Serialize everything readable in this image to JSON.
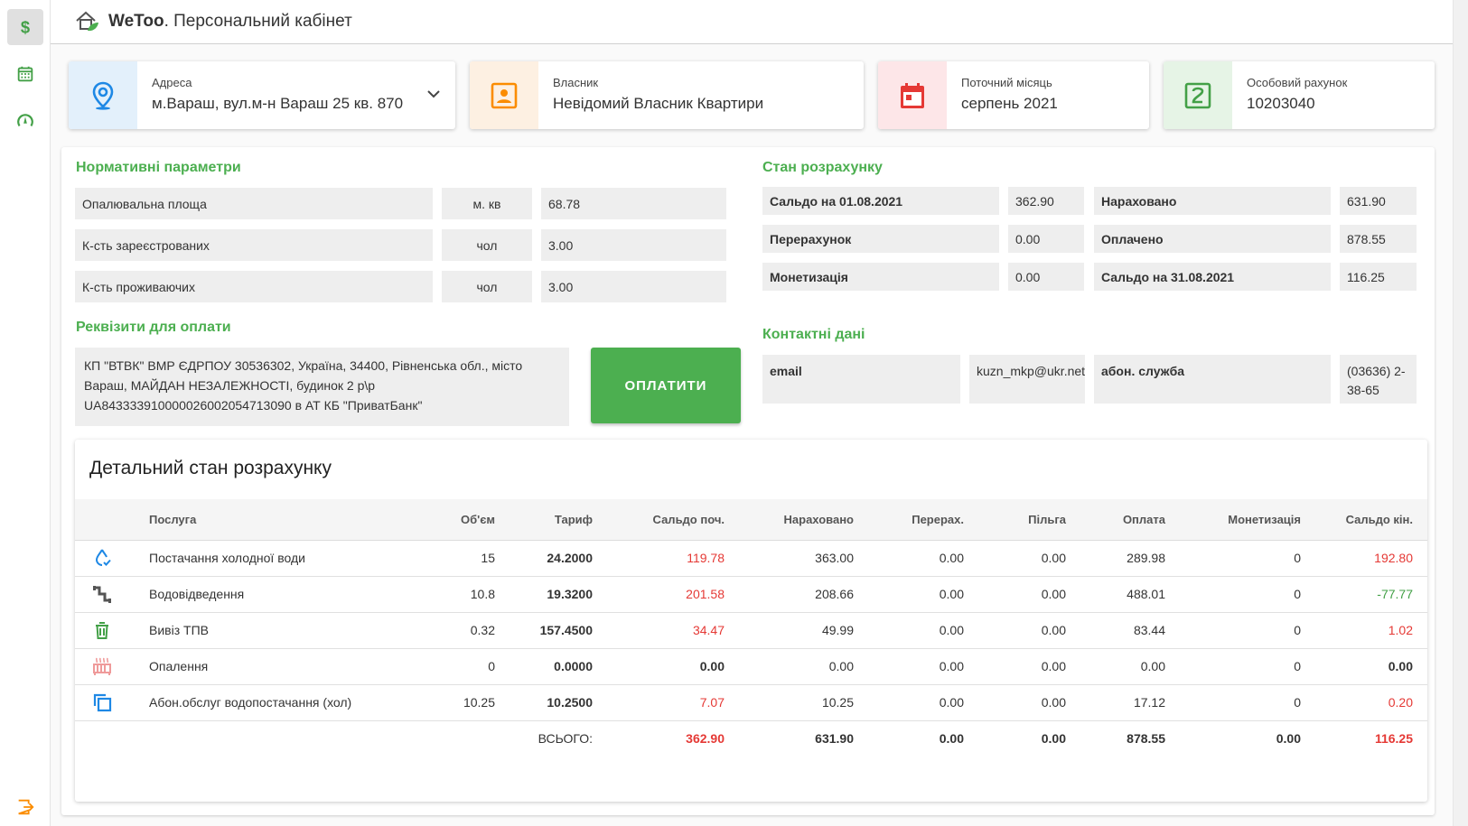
{
  "header": {
    "brand": "WeToo",
    "rest": ". Персональний кабінет"
  },
  "cards": {
    "address": {
      "label": "Адреса",
      "value": "м.Вараш, вул.м-н Вараш 25 кв. 870"
    },
    "owner": {
      "label": "Власник",
      "value": "Невідомий Власник Квартири"
    },
    "month": {
      "label": "Поточний місяць",
      "value": "серпень 2021"
    },
    "account": {
      "label": "Особовий рахунок",
      "value": "10203040"
    }
  },
  "norm": {
    "title": "Нормативні параметри",
    "rows": [
      {
        "label": "Опалювальна площа",
        "unit": "м. кв",
        "value": "68.78"
      },
      {
        "label": "К-сть зареєстрованих",
        "unit": "чол",
        "value": "3.00"
      },
      {
        "label": "К-сть проживаючих",
        "unit": "чол",
        "value": "3.00"
      }
    ]
  },
  "payment": {
    "title": "Реквізити для оплати",
    "line1": "КП \"ВТВК\" ВМР ЄДРПОУ 30536302, Україна, 34400, Рівненська обл., місто",
    "line2": "Вараш, МАЙДАН НЕЗАЛЕЖНОСТІ, будинок 2 р\\р",
    "line3": "UA843333910000026002054713090 в АТ КБ \"ПриватБанк\"",
    "button": "ОПЛАТИТИ"
  },
  "state": {
    "title": "Стан розрахунку",
    "left": [
      {
        "label": "Сальдо на 01.08.2021",
        "value": "362.90"
      },
      {
        "label": "Перерахунок",
        "value": "0.00"
      },
      {
        "label": "Монетизація",
        "value": "0.00"
      }
    ],
    "right": [
      {
        "label": "Нараховано",
        "value": "631.90"
      },
      {
        "label": "Оплачено",
        "value": "878.55"
      },
      {
        "label": "Сальдо на 31.08.2021",
        "value": "116.25"
      }
    ]
  },
  "contacts": {
    "title": "Контактні дані",
    "email_label": "email",
    "email_value": "kuzn_mkp@ukr.net",
    "service_label": "абон. служба",
    "service_value_1": "(03636) 2-",
    "service_value_2": "38-65"
  },
  "detail": {
    "title": "Детальний стан розрахунку",
    "headers": [
      "Послуга",
      "Об'єм",
      "Тариф",
      "Сальдо поч.",
      "Нараховано",
      "Перерах.",
      "Пільга",
      "Оплата",
      "Монетизація",
      "Сальдо кін."
    ],
    "rows": [
      {
        "icon": "water-drop-icon",
        "service": "Постачання холодної води",
        "volume": "15",
        "tariff": "24.2000",
        "start": "119.78",
        "charged": "363.00",
        "recalc": "0.00",
        "benefit": "0.00",
        "paid": "289.98",
        "monet": "0",
        "end": "192.80"
      },
      {
        "icon": "drain-pipe-icon",
        "service": "Водовідведення",
        "volume": "10.8",
        "tariff": "19.3200",
        "start": "201.58",
        "charged": "208.66",
        "recalc": "0.00",
        "benefit": "0.00",
        "paid": "488.01",
        "monet": "0",
        "end": "-77.77"
      },
      {
        "icon": "trash-icon",
        "service": "Вивіз ТПВ",
        "volume": "0.32",
        "tariff": "157.4500",
        "start": "34.47",
        "charged": "49.99",
        "recalc": "0.00",
        "benefit": "0.00",
        "paid": "83.44",
        "monet": "0",
        "end": "1.02"
      },
      {
        "icon": "radiator-icon",
        "service": "Опалення",
        "volume": "0",
        "tariff": "0.0000",
        "start": "0.00",
        "charged": "0.00",
        "recalc": "0.00",
        "benefit": "0.00",
        "paid": "0.00",
        "monet": "0",
        "end": "0.00"
      },
      {
        "icon": "copy-icon",
        "service": "Абон.обслуг водопостачання (хол)",
        "volume": "10.25",
        "tariff": "10.2500",
        "start": "7.07",
        "charged": "10.25",
        "recalc": "0.00",
        "benefit": "0.00",
        "paid": "17.12",
        "monet": "0",
        "end": "0.20"
      }
    ],
    "total": {
      "label": "ВСЬОГО:",
      "start": "362.90",
      "charged": "631.90",
      "recalc": "0.00",
      "benefit": "0.00",
      "paid": "878.55",
      "monet": "0.00",
      "end": "116.25"
    }
  },
  "colors": {
    "accent": "#4caf50",
    "negative": "#e53935",
    "positive": "#43a047",
    "blue": "#1e88e5",
    "orange": "#fb8c00",
    "red": "#e53935",
    "green_icon": "#43a047"
  }
}
